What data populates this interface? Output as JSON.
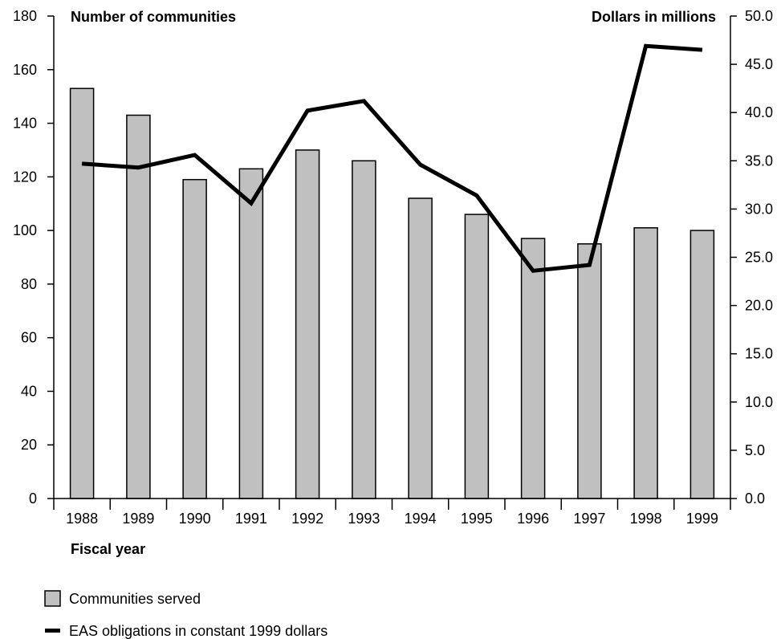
{
  "chart_data": {
    "type": "bar",
    "categories": [
      "1988",
      "1989",
      "1990",
      "1991",
      "1992",
      "1993",
      "1994",
      "1995",
      "1996",
      "1997",
      "1998",
      "1999"
    ],
    "series": [
      {
        "name": "Communities served",
        "kind": "bar",
        "axis": "left",
        "color": "#c0c0c0",
        "values": [
          153,
          143,
          119,
          123,
          130,
          126,
          112,
          106,
          97,
          95,
          101,
          100
        ]
      },
      {
        "name": "EAS obligations in constant 1999 dollars",
        "kind": "line",
        "axis": "right",
        "color": "#000000",
        "values": [
          34.7,
          34.3,
          35.6,
          30.6,
          40.2,
          41.2,
          34.6,
          31.4,
          23.6,
          24.2,
          46.9,
          46.5
        ]
      }
    ],
    "left_axis": {
      "label": "Number of communities",
      "ylim": [
        0,
        180
      ],
      "ticks": [
        "0",
        "20",
        "40",
        "60",
        "80",
        "100",
        "120",
        "140",
        "160",
        "180"
      ]
    },
    "right_axis": {
      "label": "Dollars in millions",
      "ylim": [
        0,
        50
      ],
      "ticks": [
        "0.0",
        "5.0",
        "10.0",
        "15.0",
        "20.0",
        "25.0",
        "30.0",
        "35.0",
        "40.0",
        "45.0",
        "50.0"
      ]
    },
    "xlabel": "Fiscal year",
    "grid": false,
    "legend_position": "bottom-left"
  }
}
